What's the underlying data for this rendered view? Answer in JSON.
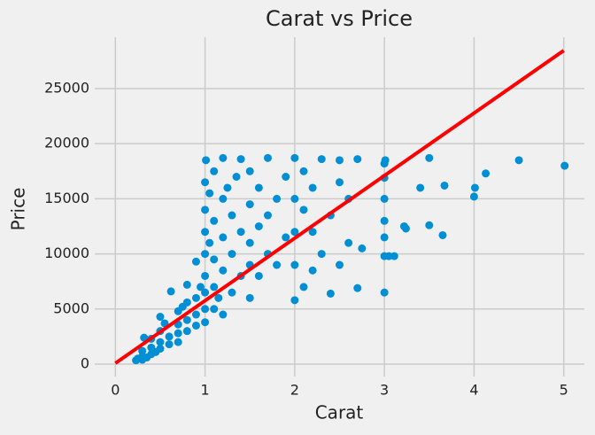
{
  "chart_data": {
    "type": "scatter",
    "title": "Carat vs Price",
    "x_label": "Carat",
    "y_label": "Price",
    "xlim": [
      -0.23,
      5.23
    ],
    "ylim": [
      -1125,
      29660
    ],
    "xticks": [
      0,
      1,
      2,
      3,
      4,
      5
    ],
    "yticks": [
      0,
      5000,
      10000,
      15000,
      20000,
      25000
    ],
    "grid": true,
    "series": [
      {
        "type": "scatter",
        "color": "#008fd5",
        "x": [
          0.23,
          0.25,
          0.3,
          0.3,
          0.3,
          0.32,
          0.35,
          0.4,
          0.4,
          0.4,
          0.45,
          0.5,
          0.5,
          0.5,
          0.5,
          0.55,
          0.6,
          0.6,
          0.62,
          0.7,
          0.7,
          0.7,
          0.7,
          0.75,
          0.8,
          0.8,
          0.8,
          0.8,
          0.9,
          0.9,
          0.9,
          0.9,
          0.95,
          1.0,
          1.0,
          1.0,
          1.0,
          1.0,
          1.0,
          1.0,
          1.0,
          1.01,
          1.05,
          1.05,
          1.1,
          1.1,
          1.1,
          1.1,
          1.1,
          1.15,
          1.2,
          1.2,
          1.2,
          1.2,
          1.2,
          1.25,
          1.3,
          1.3,
          1.3,
          1.35,
          1.4,
          1.4,
          1.4,
          1.5,
          1.5,
          1.5,
          1.5,
          1.5,
          1.6,
          1.6,
          1.6,
          1.7,
          1.7,
          1.7,
          1.8,
          1.8,
          1.9,
          1.9,
          2.0,
          2.0,
          2.0,
          2.0,
          2.0,
          2.1,
          2.1,
          2.1,
          2.2,
          2.2,
          2.2,
          2.3,
          2.3,
          2.4,
          2.4,
          2.5,
          2.5,
          2.5,
          2.6,
          2.6,
          2.7,
          2.7,
          2.75,
          3.01,
          3.0,
          3.0,
          3.0,
          3.0,
          3.0,
          3.0,
          3.0,
          3.05,
          3.11,
          3.22,
          3.24,
          3.4,
          3.5,
          3.5,
          3.65,
          3.67,
          4.0,
          4.01,
          4.13,
          4.5,
          5.01
        ],
        "values": [
          350,
          500,
          400,
          700,
          1200,
          2400,
          600,
          900,
          1500,
          2300,
          1100,
          1400,
          2000,
          3000,
          4300,
          3700,
          1800,
          2500,
          6600,
          2000,
          2800,
          3600,
          4800,
          5200,
          3000,
          4000,
          5600,
          7200,
          3500,
          4500,
          6000,
          9300,
          7000,
          3800,
          5000,
          6500,
          8000,
          10000,
          12000,
          14000,
          16500,
          18500,
          11000,
          15500,
          5000,
          7000,
          9500,
          13000,
          17500,
          6000,
          4500,
          8500,
          11500,
          15000,
          18700,
          16000,
          6500,
          10000,
          13500,
          17000,
          8000,
          12000,
          18600,
          6000,
          9000,
          11000,
          14500,
          17500,
          8000,
          12500,
          16000,
          10000,
          18700,
          13500,
          9000,
          15000,
          11500,
          17000,
          5800,
          9000,
          12000,
          15000,
          18700,
          7000,
          14000,
          17500,
          8500,
          12000,
          16000,
          10000,
          18600,
          13500,
          6400,
          9000,
          16500,
          18500,
          11000,
          15000,
          18600,
          6900,
          10500,
          18500,
          18200,
          16900,
          15000,
          13000,
          11500,
          9800,
          6500,
          9800,
          9800,
          12500,
          12300,
          16000,
          18700,
          12600,
          11700,
          16200,
          15200,
          16000,
          17300,
          18500,
          18000
        ]
      },
      {
        "type": "line",
        "color": "#ff0000",
        "x": [
          0,
          5
        ],
        "values": [
          80,
          28450
        ]
      }
    ]
  }
}
